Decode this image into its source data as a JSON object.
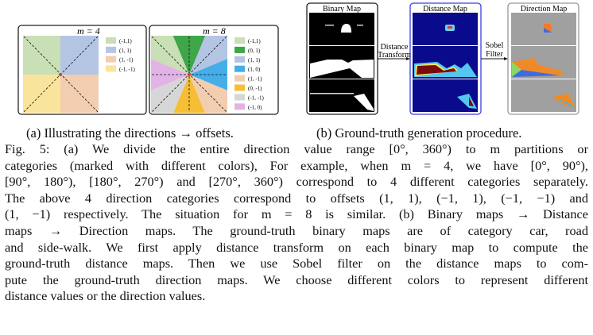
{
  "figure_a": {
    "panel_m4": {
      "title": "m = 4",
      "legend": [
        {
          "label": "(-1,1)",
          "color": "#c9dfb6"
        },
        {
          "label": "(1, 1)",
          "color": "#b4c5e4"
        },
        {
          "label": "(1, -1)",
          "color": "#f2cdb0"
        },
        {
          "label": "(-1, -1)",
          "color": "#fae49c"
        }
      ]
    },
    "panel_m8": {
      "title": "m = 8",
      "legend": [
        {
          "label": "(-1,1)",
          "color": "#c9dfb6"
        },
        {
          "label": "(0, 1)",
          "color": "#3fa64a"
        },
        {
          "label": "(1, 1)",
          "color": "#b4c5e4"
        },
        {
          "label": "(1, 0)",
          "color": "#45aee8"
        },
        {
          "label": "(1, -1)",
          "color": "#f2cdb0"
        },
        {
          "label": "(0, -1)",
          "color": "#f5be35"
        },
        {
          "label": "(-1, -1)",
          "color": "#d6d6d6"
        },
        {
          "label": "(-1, 0)",
          "color": "#e2b3e6"
        }
      ]
    },
    "caption": "(a) Illustrating the directions → offsets."
  },
  "figure_b": {
    "binary_title": "Binary Map",
    "distance_title": "Distance Map",
    "direction_title": "Direction Map",
    "arrow1_label": [
      "Distance",
      "Transform"
    ],
    "arrow2_label": [
      "Sobel",
      "Filter"
    ],
    "caption": "(b) Ground-truth generation procedure."
  },
  "paragraph": {
    "lines": [
      "Fig. 5: (a) We divide the entire direction value range [0°, 360°) to m partitions or",
      "categories (marked with different colors), For example, when m = 4, we have [0°, 90°),",
      "[90°, 180°), [180°, 270°) and [270°, 360°) correspond to 4 different categories separately.",
      "The above 4 direction categories correspond to offsets (1, 1), (−1, 1), (−1, −1) and",
      "(1, −1) respectively. The situation for m = 8 is similar. (b) Binary maps → Distance",
      "maps → Direction maps. The ground-truth binary maps are of category car, road",
      "and side-walk. We first apply distance transform on each binary map to compute the",
      "ground-truth distance maps. Then we use Sobel filter on the distance maps to com-",
      "pute the ground-truth direction maps. We choose different colors to represent different",
      "distance values or the direction values."
    ]
  }
}
